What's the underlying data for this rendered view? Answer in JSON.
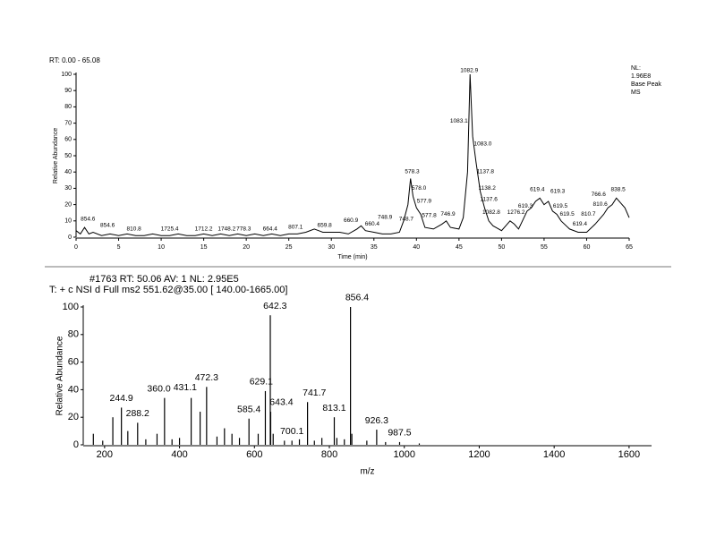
{
  "chart_data": [
    {
      "type": "line",
      "title": "RT: 0.00 - 65.08",
      "info": [
        "NL:",
        "1.96E8",
        "Base Peak",
        "MS"
      ],
      "xlabel": "Time (min)",
      "ylabel": "Relative Abundance",
      "color": "#000000",
      "xlim": [
        0,
        65
      ],
      "ylim": [
        0,
        100
      ],
      "xticks": [
        0,
        5,
        10,
        15,
        20,
        25,
        30,
        35,
        40,
        45,
        50,
        55,
        60,
        65
      ],
      "yticks": [
        0,
        10,
        20,
        30,
        40,
        50,
        60,
        70,
        80,
        90,
        100
      ],
      "x": [
        0,
        0.5,
        1,
        1.5,
        2,
        3,
        4,
        5,
        6,
        7,
        8,
        9,
        10,
        11,
        12,
        13,
        14,
        15,
        16,
        17,
        18,
        19,
        20,
        21,
        22,
        23,
        24,
        25,
        26,
        27,
        28,
        28.5,
        29,
        30,
        31,
        32,
        33,
        33.5,
        34,
        35,
        36,
        37,
        38,
        38.5,
        39,
        39.3,
        39.6,
        40,
        40.5,
        41,
        42,
        43,
        43.5,
        44,
        45,
        45.5,
        46,
        46.3,
        46.6,
        47,
        47.5,
        48,
        48.5,
        49,
        50,
        51,
        51.5,
        52,
        53,
        53.5,
        54,
        54.5,
        55,
        55.5,
        56,
        56.5,
        57,
        58,
        59,
        60,
        61,
        62,
        62.5,
        63,
        63.5,
        64,
        64.5,
        65
      ],
      "values": [
        4,
        2,
        6,
        2,
        3,
        1,
        2,
        1,
        2,
        1,
        1,
        2,
        1,
        1,
        2,
        1,
        1,
        2,
        1,
        2,
        1,
        2,
        1,
        2,
        1,
        2,
        1,
        2,
        2,
        3,
        5,
        4,
        3,
        3,
        3,
        2,
        5,
        7,
        4,
        3,
        2,
        2,
        3,
        10,
        20,
        36,
        25,
        18,
        14,
        6,
        5,
        8,
        10,
        6,
        5,
        12,
        40,
        100,
        62,
        46,
        28,
        18,
        10,
        7,
        4,
        10,
        8,
        5,
        16,
        18,
        22,
        24,
        20,
        22,
        16,
        14,
        10,
        5,
        3,
        3,
        8,
        14,
        18,
        20,
        24,
        21,
        18,
        12
      ],
      "annotations": [
        {
          "text": "854.6",
          "x": 1.4,
          "y": 9
        },
        {
          "text": "854.6",
          "x": 3.7,
          "y": 5
        },
        {
          "text": "810.8",
          "x": 6.8,
          "y": 3
        },
        {
          "text": "1725.4",
          "x": 11,
          "y": 3
        },
        {
          "text": "1712.2",
          "x": 15,
          "y": 3
        },
        {
          "text": "1748.2",
          "x": 17.7,
          "y": 3
        },
        {
          "text": "778.3",
          "x": 19.7,
          "y": 3
        },
        {
          "text": "664.4",
          "x": 22.8,
          "y": 3
        },
        {
          "text": "807.1",
          "x": 25.8,
          "y": 4
        },
        {
          "text": "659.8",
          "x": 29.2,
          "y": 5
        },
        {
          "text": "660.9",
          "x": 32.3,
          "y": 8
        },
        {
          "text": "660.4",
          "x": 34.8,
          "y": 6
        },
        {
          "text": "748.9",
          "x": 36.3,
          "y": 10
        },
        {
          "text": "748.7",
          "x": 38.8,
          "y": 9
        },
        {
          "text": "578.3",
          "x": 39.5,
          "y": 38
        },
        {
          "text": "578.0",
          "x": 40.3,
          "y": 28
        },
        {
          "text": "577.9",
          "x": 40.9,
          "y": 20
        },
        {
          "text": "577.8",
          "x": 41.5,
          "y": 11
        },
        {
          "text": "746.9",
          "x": 43.7,
          "y": 12
        },
        {
          "text": "1082.9",
          "x": 46.2,
          "y": 100
        },
        {
          "text": "1083.1",
          "x": 45.0,
          "y": 69
        },
        {
          "text": "1083.0",
          "x": 47.8,
          "y": 55
        },
        {
          "text": "1137.8",
          "x": 48.1,
          "y": 38
        },
        {
          "text": "1138.2",
          "x": 48.3,
          "y": 28
        },
        {
          "text": "1137.6",
          "x": 48.5,
          "y": 21
        },
        {
          "text": "1082.8",
          "x": 48.8,
          "y": 13
        },
        {
          "text": "1276.2",
          "x": 51.7,
          "y": 13
        },
        {
          "text": "619.3",
          "x": 52.8,
          "y": 17
        },
        {
          "text": "619.4",
          "x": 54.2,
          "y": 27
        },
        {
          "text": "619.3",
          "x": 56.6,
          "y": 26
        },
        {
          "text": "619.5",
          "x": 56.9,
          "y": 17
        },
        {
          "text": "619.5",
          "x": 57.7,
          "y": 12
        },
        {
          "text": "619.4",
          "x": 59.2,
          "y": 6
        },
        {
          "text": "810.7",
          "x": 60.2,
          "y": 12
        },
        {
          "text": "810.6",
          "x": 61.6,
          "y": 18
        },
        {
          "text": "766.6",
          "x": 61.4,
          "y": 24
        },
        {
          "text": "838.5",
          "x": 63.7,
          "y": 27
        }
      ]
    },
    {
      "type": "stem",
      "header": [
        "#1763  RT: 50.06  AV: 1  NL: 2.95E5",
        "T: + c NSI d Full ms2 551.62@35.00 [ 140.00-1665.00]"
      ],
      "xlabel": "m/z",
      "ylabel": "Relative Abundance",
      "color": "#000000",
      "xlim": [
        143,
        1660
      ],
      "ylim": [
        0,
        100
      ],
      "xticks": [
        200,
        400,
        600,
        800,
        1000,
        1200,
        1400,
        1600
      ],
      "yticks": [
        0,
        20,
        40,
        60,
        80,
        100
      ],
      "x": [
        170,
        195,
        222,
        244.9,
        262,
        288.2,
        310,
        340,
        360.0,
        380,
        400,
        431.1,
        455,
        472.3,
        500,
        520,
        540,
        560,
        585.4,
        610,
        629.1,
        642.3,
        643.4,
        650,
        680,
        700.1,
        720,
        741.7,
        760,
        780,
        813.1,
        820,
        840,
        856.4,
        860,
        900,
        926.3,
        950,
        987.5,
        1040
      ],
      "values": [
        8,
        3,
        20,
        27,
        10,
        16,
        4,
        8,
        34,
        4,
        5,
        34,
        24,
        42,
        6,
        12,
        8,
        5,
        19,
        8,
        39,
        94,
        24,
        8,
        3,
        3,
        4,
        31,
        3,
        5,
        20,
        5,
        4,
        100,
        8,
        3,
        11,
        2,
        2,
        1
      ],
      "annotations": [
        {
          "text": "244.9",
          "x": 244.9,
          "y": 29
        },
        {
          "text": "288.2",
          "x": 288.2,
          "y": 18
        },
        {
          "text": "360.0",
          "x": 345,
          "y": 36
        },
        {
          "text": "431.1",
          "x": 415,
          "y": 37
        },
        {
          "text": "472.3",
          "x": 472.3,
          "y": 44
        },
        {
          "text": "585.4",
          "x": 585.4,
          "y": 21
        },
        {
          "text": "629.1",
          "x": 618,
          "y": 41
        },
        {
          "text": "642.3",
          "x": 655,
          "y": 96
        },
        {
          "text": "643.4",
          "x": 672,
          "y": 26
        },
        {
          "text": "700.1",
          "x": 700.1,
          "y": 5
        },
        {
          "text": "741.7",
          "x": 760,
          "y": 33
        },
        {
          "text": "813.1",
          "x": 813.1,
          "y": 22
        },
        {
          "text": "856.4",
          "x": 874,
          "y": 102
        },
        {
          "text": "926.3",
          "x": 926.3,
          "y": 13
        },
        {
          "text": "987.5",
          "x": 987.5,
          "y": 4
        }
      ]
    }
  ]
}
